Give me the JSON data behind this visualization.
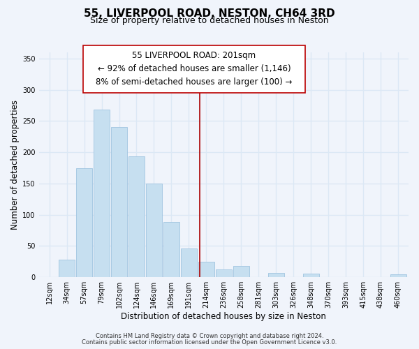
{
  "title": "55, LIVERPOOL ROAD, NESTON, CH64 3RD",
  "subtitle": "Size of property relative to detached houses in Neston",
  "xlabel": "Distribution of detached houses by size in Neston",
  "ylabel": "Number of detached properties",
  "bar_labels": [
    "12sqm",
    "34sqm",
    "57sqm",
    "79sqm",
    "102sqm",
    "124sqm",
    "146sqm",
    "169sqm",
    "191sqm",
    "214sqm",
    "236sqm",
    "258sqm",
    "281sqm",
    "303sqm",
    "326sqm",
    "348sqm",
    "370sqm",
    "393sqm",
    "415sqm",
    "438sqm",
    "460sqm"
  ],
  "bar_heights": [
    0,
    28,
    175,
    268,
    240,
    193,
    150,
    89,
    46,
    25,
    13,
    18,
    0,
    7,
    0,
    6,
    0,
    0,
    0,
    0,
    5
  ],
  "bar_color": "#c6dff0",
  "bar_edge_color": "#a0c4e0",
  "vline_x": 8.62,
  "vline_color": "#aa0000",
  "annotation_title": "55 LIVERPOOL ROAD: 201sqm",
  "annotation_line1": "← 92% of detached houses are smaller (1,146)",
  "annotation_line2": "8% of semi-detached houses are larger (100) →",
  "ylim": [
    0,
    360
  ],
  "yticks": [
    0,
    50,
    100,
    150,
    200,
    250,
    300,
    350
  ],
  "footer1": "Contains HM Land Registry data © Crown copyright and database right 2024.",
  "footer2": "Contains public sector information licensed under the Open Government Licence v3.0.",
  "bg_color": "#f0f4fb",
  "grid_color": "#dce8f5",
  "title_fontsize": 11,
  "subtitle_fontsize": 9,
  "annotation_fontsize": 8.5,
  "axis_label_fontsize": 8.5,
  "tick_fontsize": 7,
  "footer_fontsize": 6
}
